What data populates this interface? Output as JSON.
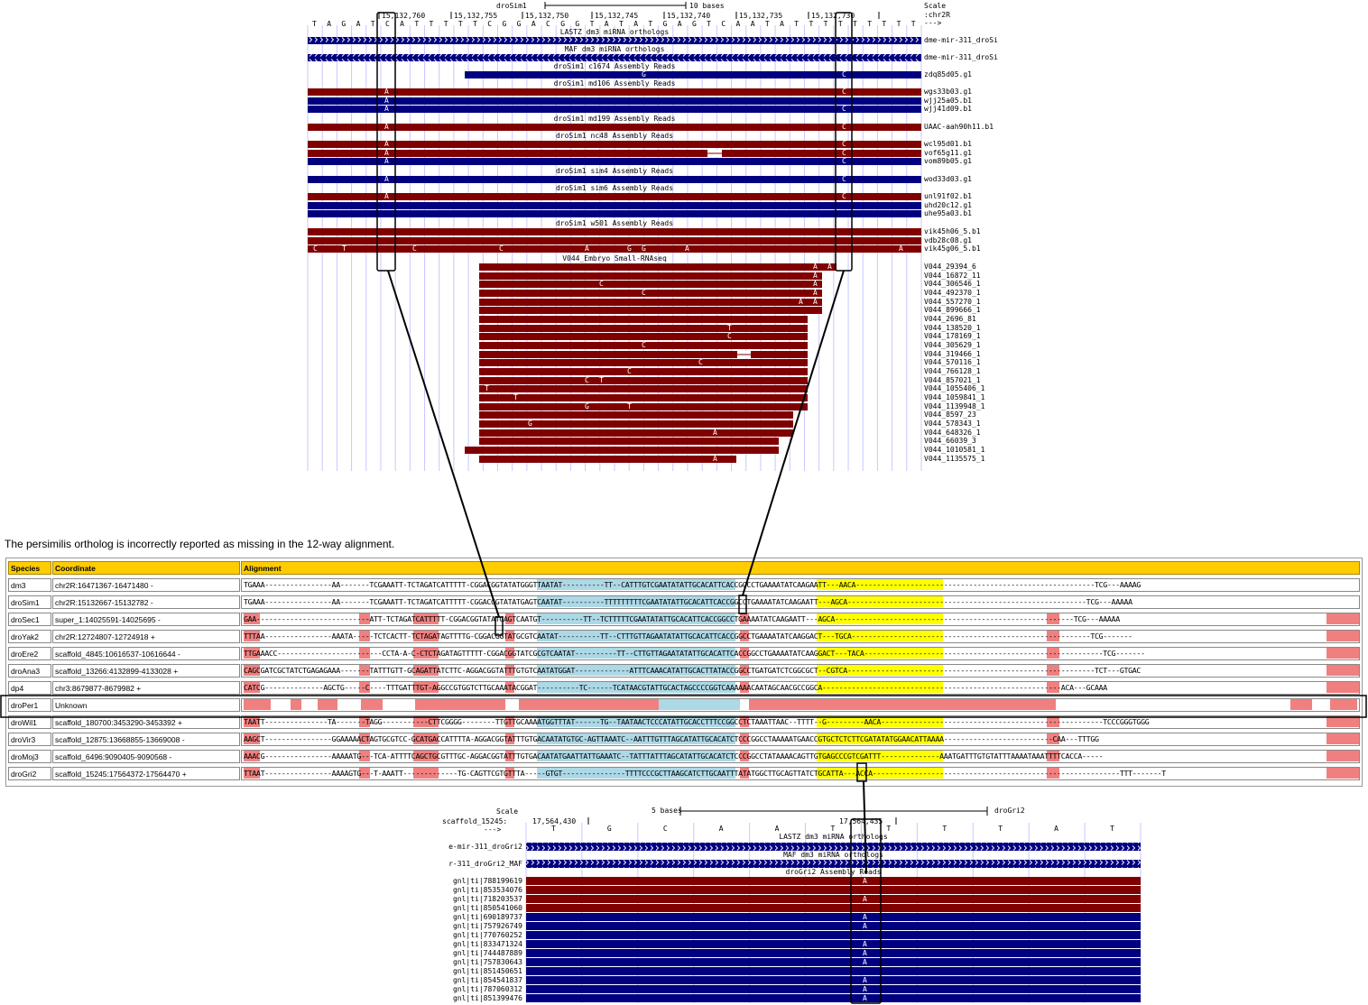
{
  "top_browser": {
    "assembly": "droSim1",
    "scale_label": "10 bases",
    "scale_word": "Scale",
    "chrom": ":chr2R",
    "strand_arrow": "--->",
    "coordinates": [
      "15,132,760",
      "15,132,755",
      "15,132,750",
      "15,132,745",
      "15,132,740",
      "15,132,735",
      "15,132,730"
    ],
    "base_sequence": [
      "T",
      "A",
      "G",
      "A",
      "T",
      "C",
      "A",
      "T",
      "T",
      "T",
      "T",
      "T",
      "C",
      "G",
      "G",
      "A",
      "C",
      "G",
      "G",
      "T",
      "A",
      "T",
      "A",
      "T",
      "G",
      "A",
      "G",
      "T",
      "C",
      "A",
      "A",
      "T",
      "A",
      "T",
      "T",
      "T",
      "T",
      "T",
      "T",
      "T",
      "T",
      "T"
    ],
    "tracks": [
      {
        "title": "LASTZ dm3 miRNA orthologs",
        "items": [
          {
            "name": "dme-mir-311_droSi"
          }
        ]
      },
      {
        "title": "MAF dm3 miRNA orthologs",
        "items": [
          {
            "name": "dme-mir-311_droSi"
          }
        ]
      },
      {
        "title": "droSim1 c1674 Assembly Reads",
        "items": [
          {
            "name": "zdq85d05.g1",
            "bases": [
              "G",
              "C"
            ]
          }
        ]
      },
      {
        "title": "droSim1 md106 Assembly Reads",
        "items": [
          {
            "name": "wgs33b03.g1",
            "bases": [
              "A",
              "C"
            ]
          },
          {
            "name": "wjj25a05.b1",
            "bases": [
              "A"
            ]
          },
          {
            "name": "wjj41d09.b1",
            "bases": [
              "A",
              "C"
            ]
          }
        ]
      },
      {
        "title": "droSim1 md199 Assembly Reads",
        "items": [
          {
            "name": "UAAC-aah90h11.b1",
            "bases": [
              "A",
              "C"
            ]
          }
        ]
      },
      {
        "title": "droSim1 nc48 Assembly Reads",
        "items": [
          {
            "name": "wcl95d01.b1",
            "bases": [
              "A",
              "C"
            ]
          },
          {
            "name": "vof65g11.g1",
            "bases": [
              "A",
              "C"
            ]
          },
          {
            "name": "vom89b05.g1",
            "bases": [
              "A",
              "C"
            ]
          }
        ]
      },
      {
        "title": "droSim1 sim4 Assembly Reads",
        "items": [
          {
            "name": "wod33d03.g1",
            "bases": [
              "A",
              "C"
            ]
          }
        ]
      },
      {
        "title": "droSim1 sim6 Assembly Reads",
        "items": [
          {
            "name": "unl91f02.b1",
            "bases": [
              "A",
              "C"
            ]
          },
          {
            "name": "uhd20c12.g1",
            "bases": []
          },
          {
            "name": "uhe95a03.b1",
            "bases": []
          }
        ]
      },
      {
        "title": "droSim1 w501 Assembly Reads",
        "items": [
          {
            "name": "vik45h06_5.b1",
            "bases": []
          },
          {
            "name": "vdb28c08.g1",
            "bases": []
          },
          {
            "name": "vik45g06_5.b1",
            "bases": [
              "C",
              "T",
              "C",
              "C",
              "A",
              "G",
              "G",
              "A",
              "A"
            ]
          }
        ]
      },
      {
        "title": "V044_Embryo Small-RNAseq",
        "items": [
          {
            "name": "V044_29394_6",
            "bases": [
              "A",
              "A"
            ]
          },
          {
            "name": "V044_16872_11",
            "bases": [
              "A"
            ]
          },
          {
            "name": "V044_306546_1",
            "bases": [
              "C",
              "A"
            ]
          },
          {
            "name": "V044_492370_1",
            "bases": [
              "C",
              "A"
            ]
          },
          {
            "name": "V044_557270_1",
            "bases": [
              "A",
              "A"
            ]
          },
          {
            "name": "V044_899666_1",
            "bases": []
          },
          {
            "name": "V044_2696_81",
            "bases": []
          },
          {
            "name": "V044_138520_1",
            "bases": [
              "T"
            ]
          },
          {
            "name": "V044_178169_1",
            "bases": [
              "C"
            ]
          },
          {
            "name": "V044_305629_1",
            "bases": [
              "C"
            ]
          },
          {
            "name": "V044_319466_1",
            "bases": []
          },
          {
            "name": "V044_570116_1",
            "bases": [
              "C"
            ]
          },
          {
            "name": "V044_766128_1",
            "bases": [
              "C"
            ]
          },
          {
            "name": "V044_857021_1",
            "bases": [
              "C",
              "T"
            ]
          },
          {
            "name": "V044_1055406_1",
            "bases": [
              "T"
            ]
          },
          {
            "name": "V044_1059841_1",
            "bases": [
              "T"
            ]
          },
          {
            "name": "V044_1139948_1",
            "bases": [
              "G",
              "T"
            ]
          },
          {
            "name": "V044_8597_23",
            "bases": []
          },
          {
            "name": "V044_578343_1",
            "bases": [
              "G"
            ]
          },
          {
            "name": "V044_648326_1",
            "bases": [
              "A"
            ]
          },
          {
            "name": "V044_66039_3",
            "bases": []
          },
          {
            "name": "V044_1010581_1",
            "bases": []
          },
          {
            "name": "V044_1135575_1",
            "bases": [
              "A"
            ]
          }
        ]
      }
    ]
  },
  "caption": "The persimilis ortholog is incorrectly reported as missing in the 12-way alignment.",
  "alignment_table": {
    "headers": {
      "species": "Species",
      "coordinate": "Coordinate",
      "alignment": "Alignment"
    },
    "rows": [
      {
        "species": "dm3",
        "coordinate": "chr2R:16471367-16471480  -",
        "sequence": "TGAAA----------------AA-------TCGAAATT-TCTAGATCATTTTT-CGGACGGTATATGGGTTAATAT----------TT--CATTTGTCGAATATATTGCACATTCACCGGCCTGAAAATATCAAGAATT---AACA---------------------------------------------------------TCG---AAAAG"
      },
      {
        "species": "droSim1",
        "coordinate": "chr2R:15132667-15132782  -",
        "sequence": "TGAAA----------------AA-------TCGAAATT-TCTAGATCATTTTT-CGGACGGTATATGAGTCAATAT----------TTTTTTTTTCGAATATATTGCACATTCACCGGCCTGAAAATATCAAGAATT---AGCA---------------------------------------------------------TCG---AAAAA"
      },
      {
        "species": "droSec1",
        "coordinate": "super_1:14025591-14025695  -",
        "sequence": "GAA---------------------------ATT-TCTAGATCATTTTT-CGGACGGTATATGAGTCAATGT----------TT--TCTTTTTCGAATATATTGCACATTCACCGGCCTGAAAATATCAAGAATT---AGCA---------------------------------------------------------TCG---AAAAA"
      },
      {
        "species": "droYak2",
        "coordinate": "chr2R:12724807-12724918  +",
        "sequence": "TTTAA----------------AAATA-----TCTCACTT-TCTAGATAGTTTTG-CGGACGGTATGCGTCAATAT----------TT--CTTTGTTAGAATATATTGCACATTCACCGGCCTGAAAATATCAAGGACT---TGCA---------------------------------------------------------TCG-------"
      },
      {
        "species": "droEre2",
        "coordinate": "scaffold_4845:10616537-10616644  -",
        "sequence": "TTGAAACC-------------------------CCTA-A-C-CTCTAGATAGTTTTT-CGGACGGTATCGCGTCAATAT----------TT--CTTGTTAGAATATATTGCACATTCACCGGCCTGAAAATATCAAGGACT---TACA---------------------------------------------------------TCG-------"
      },
      {
        "species": "droAna3",
        "coordinate": "scaffold_13266:4132899-4133028  +",
        "sequence": "CAGCGATCGCTATCTGAGAGAAA-------TATTTGTT-GCAGATTATCTTC-AGGACGGTATTTGTGTCAATATGGAT-------------ATTTCAAACATATTGCACTTATACCGGCCTGATGATCTCGGCGCT--CGTCA-----------------------------------------------------------TCT---GTGAC"
      },
      {
        "species": "dp4",
        "coordinate": "chr3:8679877-8679982  +",
        "sequence": "CATCG--------------AGCTG-----C----TTTGATTTGT-AGGCCGTGGTCTTGCAAATACGGAT----------TC------TCATAACGTATTGCACTAGCCCCGGTCAAAAAACAATAGCAACGCCGGCA---------------------------------------------------------ACA---GCAAA"
      },
      {
        "species": "droPer1",
        "coordinate": "Unknown",
        "sequence": ""
      },
      {
        "species": "droWil1",
        "coordinate": "scaffold_180700:3453290-3453392  +",
        "sequence": "TAATT---------------TA-------TAGG-----------CTTCGGGG--------TTGTTGCAAAATGGTTTAT------TG--TAATAACTCCCATATTGCACCTTTCCGGCCTCTAAATTAAC--TTTT--G---------AACA-----------------------------------------------------TCCCGGGTGGG"
      },
      {
        "species": "droVir3",
        "coordinate": "scaffold_12875:13668855-13669008  -",
        "sequence": "AAGCT----------------GGAAAAACTAGTGCGTCC-GCATGACCATTTTA-AGGACGGTATTTGTGACAATATGTGC-AGTTAAATC--AATTTGTTTAGCATATTGCACATCTCCCGGCCTAAAAATGAACCGTGCTCTCTTCGATATATGGAACATTAAAA--------------------------CAA---TTTGG"
      },
      {
        "species": "droMoj3",
        "coordinate": "scaffold_6496:9090405-9090568  -",
        "sequence": "AAACG----------------AAAAATG---TCA-ATTTTCAGCTGCGTTTGC-AGGACGGTATTTGTGACAATATGAATTATTGAAATC--TATTTATTTAGCATATTGCACATCTCCCGGCCTATAAAACAGTTGTGAGCCCGTCGATTT--------------AAATGATTTGTGTATTTAAAATAAATTTTCACCA-----"
      },
      {
        "species": "droGri2",
        "coordinate": "scaffold_15245:17564372-17564470  +",
        "sequence": "TTAAT----------------AAAAGTG---T-AAATT-------------TG-CAGTTCGTGTTTA-----GTGT---------------TTTTCCCGCTTAAGCATCTTGCAATTTATATGGCTTGCAGTTATCTGCATTA---ACCA-----------------------------------------------------------TTT-------T"
      }
    ]
  },
  "bottom_browser": {
    "scale_word": "Scale",
    "scale_label": "5 bases",
    "assembly": "droGri2",
    "chrom": "scaffold_15245:",
    "strand_arrow": "--->",
    "coordinates": [
      "17,564,430",
      "17,564,435"
    ],
    "base_sequence": [
      "T",
      "G",
      "C",
      "A",
      "A",
      "T",
      "T",
      "T",
      "T",
      "A",
      "T"
    ],
    "tracks": [
      {
        "title": "LASTZ dm3 miRNA orthologs",
        "items": [
          {
            "name": "e-mir-311_droGri2"
          }
        ]
      },
      {
        "title": "MAF dm3 miRNA orthologs",
        "items": [
          {
            "name": "r-311_droGri2_MAF"
          }
        ]
      },
      {
        "title": "droGri2 Assembly Reads",
        "items": [
          {
            "name": "gnl|ti|788199619",
            "bases": [
              "A"
            ]
          },
          {
            "name": "gnl|ti|853534076",
            "bases": []
          },
          {
            "name": "gnl|ti|718203537",
            "bases": [
              "A"
            ]
          },
          {
            "name": "gnl|ti|850541060",
            "bases": []
          },
          {
            "name": "gnl|ti|690189737",
            "bases": [
              "A"
            ]
          },
          {
            "name": "gnl|ti|757926749",
            "bases": [
              "A"
            ]
          },
          {
            "name": "gnl|ti|770760252",
            "bases": []
          },
          {
            "name": "gnl|ti|833471324",
            "bases": [
              "A"
            ]
          },
          {
            "name": "gnl|ti|744487889",
            "bases": [
              "A"
            ]
          },
          {
            "name": "gnl|ti|757830643",
            "bases": [
              "A"
            ]
          },
          {
            "name": "gnl|ti|851450651",
            "bases": []
          },
          {
            "name": "gnl|ti|854541837",
            "bases": [
              "A"
            ]
          },
          {
            "name": "gnl|ti|787060312",
            "bases": [
              "A"
            ]
          },
          {
            "name": "gnl|ti|851399476",
            "bases": [
              "A"
            ]
          }
        ]
      }
    ]
  },
  "colors": {
    "navy": "#000080",
    "maroon": "#800000",
    "header_yellow": "#ffcc00",
    "mismatch_pink": "#f08080",
    "mirna_yellow": "#ffff00",
    "star_blue": "#add8e6",
    "guide_line": "#c8c8ff"
  }
}
